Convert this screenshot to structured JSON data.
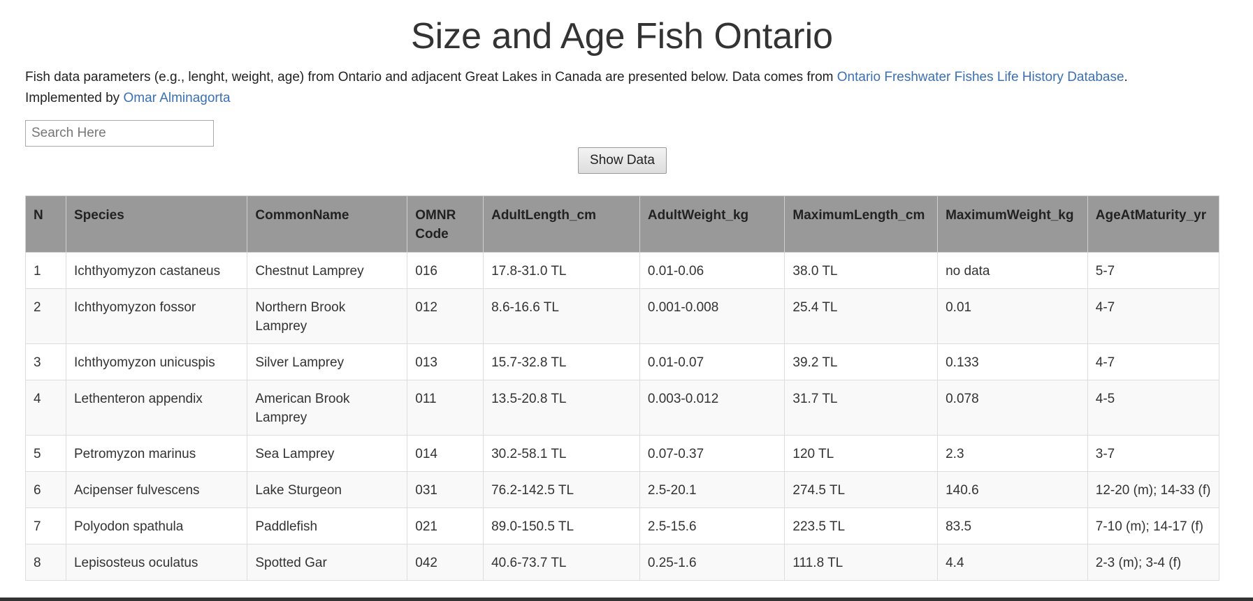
{
  "page": {
    "title": "Size and Age Fish Ontario"
  },
  "intro": {
    "text_before_link": "Fish data parameters (e.g., lenght, weight, age) from Ontario and adjacent Great Lakes in Canada are presented below. Data comes from ",
    "database_link": "Ontario Freshwater Fishes Life History Database",
    "text_after_link": ".",
    "implemented_by": "Implemented by ",
    "author_link": "Omar Alminagorta"
  },
  "search": {
    "placeholder": "Search Here",
    "value": ""
  },
  "show_button": {
    "label": "Show Data"
  },
  "table": {
    "headers": [
      "N",
      "Species",
      "CommonName",
      "OMNR Code",
      "AdultLength_cm",
      "AdultWeight_kg",
      "MaximumLength_cm",
      "MaximumWeight_kg",
      "AgeAtMaturity_yr"
    ],
    "rows": [
      [
        "1",
        "Ichthyomyzon castaneus",
        "Chestnut Lamprey",
        "016",
        "17.8-31.0 TL",
        "0.01-0.06",
        "38.0 TL",
        "no data",
        "5-7"
      ],
      [
        "2",
        "Ichthyomyzon fossor",
        "Northern Brook Lamprey",
        "012",
        "8.6-16.6 TL",
        "0.001-0.008",
        "25.4 TL",
        "0.01",
        "4-7"
      ],
      [
        "3",
        "Ichthyomyzon unicuspis",
        "Silver Lamprey",
        "013",
        "15.7-32.8 TL",
        "0.01-0.07",
        "39.2 TL",
        "0.133",
        "4-7"
      ],
      [
        "4",
        "Lethenteron appendix",
        "American Brook Lamprey",
        "011",
        "13.5-20.8 TL",
        "0.003-0.012",
        "31.7 TL",
        "0.078",
        "4-5"
      ],
      [
        "5",
        "Petromyzon marinus",
        "Sea Lamprey",
        "014",
        "30.2-58.1 TL",
        "0.07-0.37",
        "120 TL",
        "2.3",
        "3-7"
      ],
      [
        "6",
        "Acipenser fulvescens",
        "Lake Sturgeon",
        "031",
        "76.2-142.5 TL",
        "2.5-20.1",
        "274.5 TL",
        "140.6",
        "12-20 (m); 14-33 (f)"
      ],
      [
        "7",
        "Polyodon spathula",
        "Paddlefish",
        "021",
        "89.0-150.5 TL",
        "2.5-15.6",
        "223.5 TL",
        "83.5",
        "7-10 (m); 14-17 (f)"
      ],
      [
        "8",
        "Lepisosteus oculatus",
        "Spotted Gar",
        "042",
        "40.6-73.7 TL",
        "0.25-1.6",
        "111.8 TL",
        "4.4",
        "2-3 (m); 3-4 (f)"
      ]
    ]
  }
}
